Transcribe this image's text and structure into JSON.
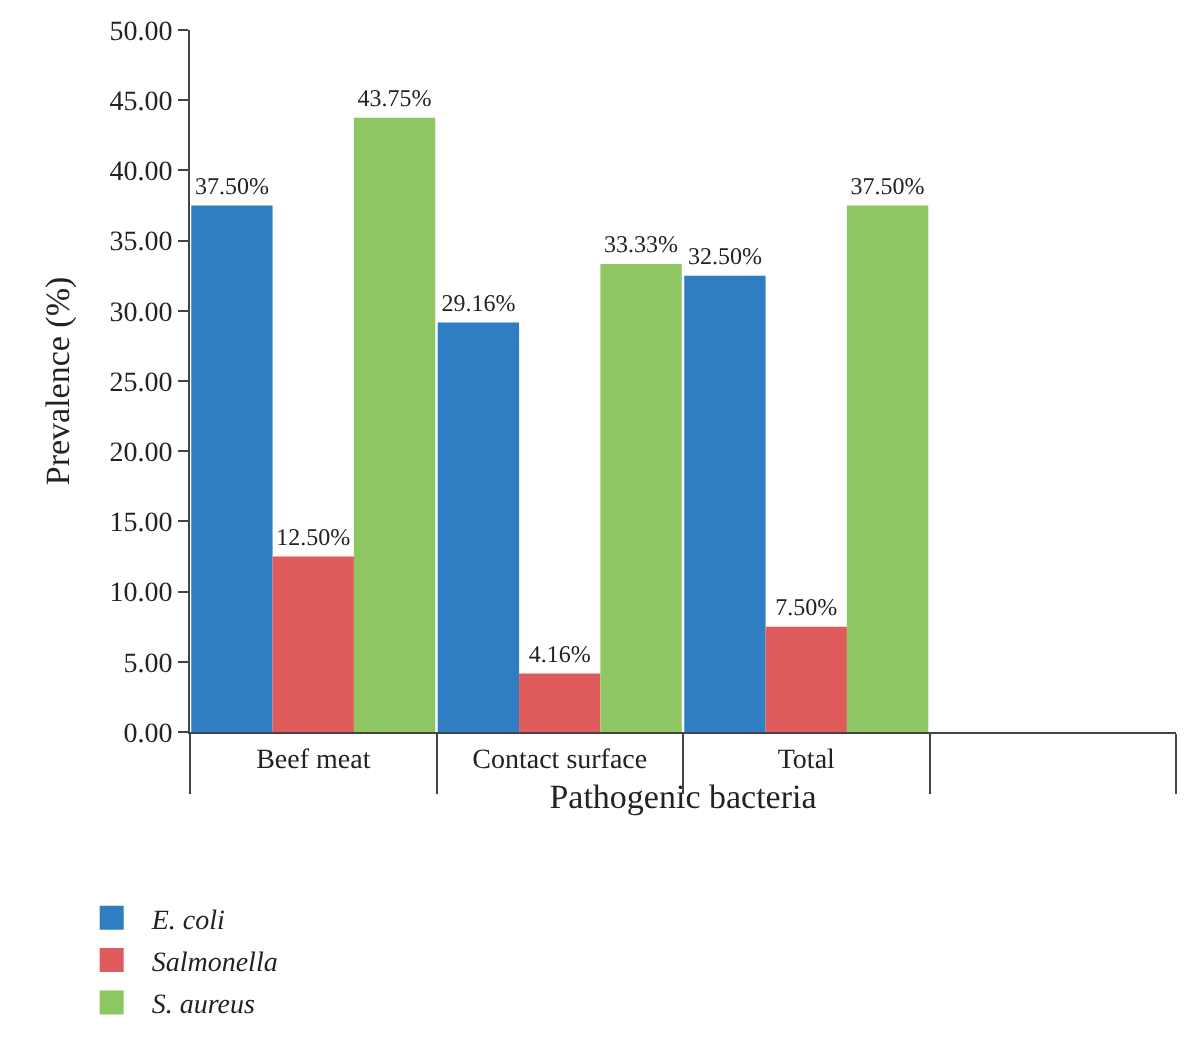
{
  "chart_data": {
    "type": "bar",
    "xlabel": "Pathogenic bacteria",
    "ylabel": "Prevalence (%)",
    "categories": [
      "Beef meat",
      "Contact surface",
      "Total",
      null
    ],
    "series": [
      {
        "name": "E. coli",
        "color": "#2e7ec1",
        "values": [
          37.5,
          29.16,
          32.5,
          null
        ],
        "value_labels": [
          "37.50%",
          "29.16%",
          "32.50%",
          null
        ]
      },
      {
        "name": "Salmonella",
        "color": "#e05b5b",
        "values": [
          12.5,
          4.16,
          7.5,
          null
        ],
        "value_labels": [
          "12.50%",
          "4.16%",
          "7.50%",
          null
        ]
      },
      {
        "name": "S. aureus",
        "color": "#8dc662",
        "values": [
          43.75,
          33.33,
          37.5,
          null
        ],
        "value_labels": [
          "43.75%",
          "33.33%",
          "37.50%",
          null
        ]
      }
    ],
    "ylim": [
      0,
      50
    ],
    "yticks": [
      {
        "value": 0,
        "label": "0.00"
      },
      {
        "value": 5,
        "label": "5.00"
      },
      {
        "value": 10,
        "label": "10.00"
      },
      {
        "value": 15,
        "label": "15.00"
      },
      {
        "value": 20,
        "label": "20.00"
      },
      {
        "value": 25,
        "label": "25.00"
      },
      {
        "value": 30,
        "label": "30.00"
      },
      {
        "value": 35,
        "label": "35.00"
      },
      {
        "value": 40,
        "label": "40.00"
      },
      {
        "value": 45,
        "label": "45.00"
      },
      {
        "value": 50,
        "label": "50.00"
      }
    ],
    "legend": "bottom left"
  }
}
